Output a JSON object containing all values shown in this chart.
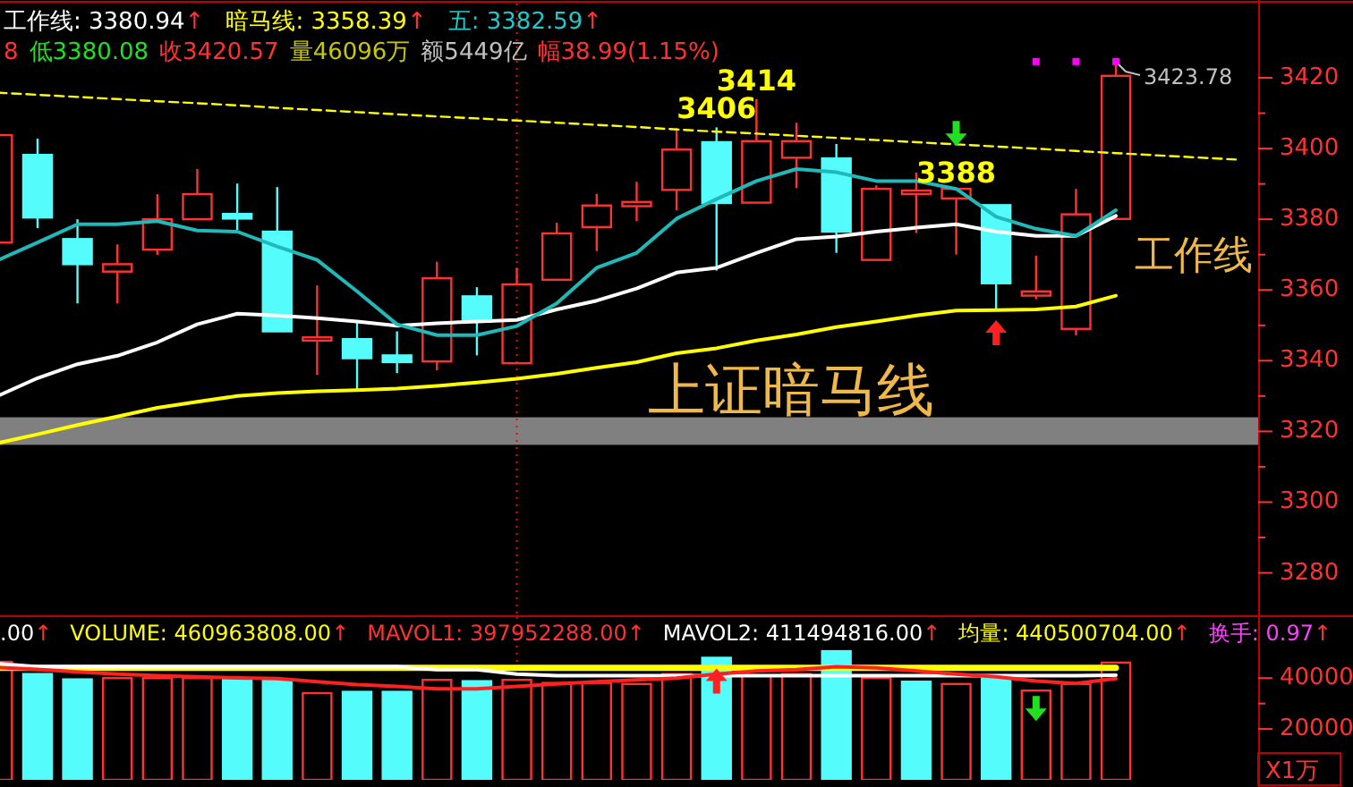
{
  "chart_data": [
    {
      "type": "candlestick",
      "categories": [
        null,
        null,
        null,
        null,
        null,
        null,
        null,
        null,
        null,
        null,
        null,
        null,
        null,
        null,
        null,
        null,
        null,
        null,
        null,
        null,
        null,
        null,
        null,
        null,
        null,
        null,
        null,
        null,
        null,
        null,
        null,
        null
      ],
      "ohlc": [
        [
          3373.4,
          3403.8,
          3373.4,
          3403.8
        ],
        [
          3398.2,
          3402.8,
          3377.5,
          3380.5
        ],
        [
          3374.4,
          3380,
          3356.2,
          3367.3
        ],
        [
          3365.2,
          3372.9,
          3356.2,
          3367.3
        ],
        [
          3371.4,
          3387.1,
          3369.9,
          3380
        ],
        [
          3380,
          3394.2,
          3380,
          3387.1
        ],
        [
          3381.5,
          3390.1,
          3377,
          3380.2
        ],
        [
          3376.5,
          3389.1,
          3348.3,
          3348.3
        ],
        [
          3345.7,
          3361.3,
          3336,
          3346.6
        ],
        [
          3346.1,
          3351.1,
          3331.9,
          3340.7
        ],
        [
          3341.5,
          3348.3,
          3336.5,
          3339.6
        ],
        [
          3339.8,
          3368,
          3337.3,
          3363.3
        ],
        [
          3358.2,
          3360.8,
          3341.5,
          3351
        ],
        [
          3339.3,
          3366.3,
          3339.3,
          3361.6
        ],
        [
          3362.9,
          3379,
          3362.9,
          3376
        ],
        [
          3377.8,
          3387.2,
          3371,
          3383.9
        ],
        [
          3383.7,
          3390.6,
          3379.5,
          3384.9
        ],
        [
          3388.3,
          3405.8,
          3382.5,
          3399.7
        ],
        [
          3401.8,
          3406,
          3365.5,
          3384.6
        ],
        [
          3384.7,
          3414,
          3384.7,
          3402.1
        ],
        [
          3397.4,
          3407.3,
          3388.8,
          3402.1
        ],
        [
          3397.2,
          3401.3,
          3370.5,
          3376.5
        ],
        [
          3368.5,
          3389.6,
          3368.5,
          3388.6
        ],
        [
          3387.1,
          3393.2,
          3376.1,
          3388.1
        ],
        [
          3385.9,
          3388.6,
          3370,
          3388.6
        ],
        [
          3384,
          3384,
          3354.5,
          3361.9
        ],
        [
          3358.4,
          3369.7,
          3357.4,
          3359.6
        ],
        [
          3349,
          3388.6,
          3347.2,
          3381.4
        ],
        [
          3380.1,
          3423.78,
          3380.08,
          3420.57
        ],
        null,
        null,
        null
      ],
      "series": [
        {
          "type": "line",
          "color": "#ffff00",
          "line_style": "dashed",
          "values": [
            3415.8,
            3415.2,
            3414.6,
            3414.0,
            3413.4,
            3412.8,
            3412.2,
            3411.5,
            3410.9,
            3410.3,
            3409.7,
            3409.1,
            3408.5,
            3407.9,
            3407.3,
            3406.7,
            3406.1,
            3405.4,
            3404.8,
            3404.2,
            3403.6,
            3403.0,
            3402.4,
            3401.8,
            3401.2,
            3400.6,
            3400.0,
            3399.3,
            3398.7,
            3398.1,
            3397.5,
            3396.9
          ]
        },
        {
          "type": "line",
          "color": "#ffff00",
          "values": [
            3316.7,
            3319.2,
            3321.8,
            3324.2,
            3326.7,
            3328.4,
            3330,
            3330.9,
            3331.4,
            3331.7,
            3332.1,
            3332.9,
            3333.8,
            3334.9,
            3336.3,
            3338,
            3339.6,
            3342.1,
            3343.5,
            3345.7,
            3347.4,
            3349.5,
            3351.1,
            3352.8,
            3354.2,
            3354.3,
            3354.5,
            3355.3,
            3358.39,
            null,
            null,
            null
          ]
        },
        {
          "type": "line",
          "color": "#ffffff",
          "values": [
            3330,
            3335.1,
            3339,
            3341.4,
            3345.2,
            3350.3,
            3353.3,
            3352.8,
            3352,
            3351.1,
            3349.9,
            3350.6,
            3351.1,
            3351.5,
            3354.5,
            3357,
            3360.4,
            3364.9,
            3366.3,
            3370.5,
            3374.4,
            3375.1,
            3376.5,
            3377.6,
            3378.6,
            3376.5,
            3375.3,
            3375.3,
            3380.94,
            null,
            null,
            null
          ]
        },
        {
          "type": "line",
          "color": "#20b8b8",
          "values": [
            3368.4,
            3373.4,
            3378.6,
            3378.6,
            3379.5,
            3376.8,
            3376.5,
            3372.3,
            3368.5,
            3359.6,
            3350.3,
            3347.2,
            3347.2,
            3349.8,
            3356.2,
            3366.3,
            3370.5,
            3380.2,
            3385.7,
            3390.8,
            3394.2,
            3393.3,
            3390.8,
            3390.8,
            3388.6,
            3380.7,
            3377.3,
            3375.3,
            3382.59,
            null,
            null,
            null
          ]
        },
        {
          "type": "scatter",
          "color": "#ff00ff",
          "marker": "square",
          "values": [
            null,
            null,
            null,
            null,
            null,
            null,
            null,
            null,
            null,
            null,
            null,
            null,
            null,
            null,
            null,
            null,
            null,
            null,
            null,
            null,
            null,
            null,
            null,
            null,
            null,
            null,
            3424.6,
            3424.6,
            3424.6,
            null,
            null,
            null
          ]
        }
      ],
      "ylim": [
        3268,
        3441
      ],
      "yticks": [
        3280,
        3300,
        3320,
        3340,
        3360,
        3380,
        3400,
        3420,
        {
          "value": 3290,
          "label": null
        },
        {
          "value": 3310,
          "label": null
        },
        {
          "value": 3330,
          "label": null
        },
        {
          "value": 3350,
          "label": null
        },
        {
          "value": 3370,
          "label": null
        },
        {
          "value": 3390,
          "label": null
        },
        {
          "value": 3410,
          "label": null
        }
      ],
      "tick_labels": "y",
      "line_style": "solid",
      "bands": [
        {
          "axis": "y",
          "from": 3316.2,
          "to": 3324,
          "color": "#808080"
        }
      ],
      "annotations": [
        "工作线: 3380.94↑",
        "暗马线: 3358.39↑",
        "五: 3382.59↑",
        "8",
        "低3380.08",
        "收3420.57",
        "量46096万",
        "额5449亿",
        "幅38.99(1.15%)",
        "工作线",
        "上证暗马线",
        {
          "text": "3406",
          "y": 3406
        },
        {
          "text": "3414",
          "y": 3414
        },
        {
          "text": "3388",
          "y": 3388
        },
        "3423.78"
      ]
    },
    {
      "type": "bar",
      "categories": [
        null,
        null,
        null,
        null,
        null,
        null,
        null,
        null,
        null,
        null,
        null,
        null,
        null,
        null,
        null,
        null,
        null,
        null,
        null,
        null,
        null,
        null,
        null,
        null,
        null,
        null,
        null,
        null,
        null,
        null,
        null,
        null
      ],
      "series": [
        {
          "type": "bar",
          "values": [
            46400,
            41600,
            39500,
            40000,
            40000,
            40000,
            39800,
            39100,
            34100,
            34600,
            34600,
            39300,
            38800,
            39300,
            38100,
            38100,
            37700,
            41600,
            48000,
            40900,
            41600,
            50600,
            40000,
            38600,
            37700,
            40900,
            35100,
            37700,
            46096,
            null,
            null,
            null
          ],
          "colors": [
            "#ff3232",
            "#54fcfc",
            "#54fcfc",
            "#ff3232",
            "#ff3232",
            "#ff3232",
            "#54fcfc",
            "#54fcfc",
            "#ff3232",
            "#54fcfc",
            "#54fcfc",
            "#ff3232",
            "#54fcfc",
            "#ff3232",
            "#ff3232",
            "#ff3232",
            "#ff3232",
            "#ff3232",
            "#54fcfc",
            "#ff3232",
            "#ff3232",
            "#54fcfc",
            "#ff3232",
            "#54fcfc",
            "#ff3232",
            "#54fcfc",
            "#ff3232",
            "#ff3232",
            "#ff3232",
            null,
            null,
            null
          ]
        },
        {
          "type": "line",
          "color": "#ffff00",
          "values": [
            44050,
            44050,
            44050,
            44050,
            44050,
            44050,
            44050,
            44050,
            44050,
            44050,
            44050,
            44050,
            44050,
            44050,
            44050,
            44050,
            44050,
            44050,
            44050,
            44050,
            44050,
            44050,
            44050,
            44050,
            44050,
            44050,
            44050,
            44050,
            44050,
            null,
            null,
            null
          ]
        },
        {
          "type": "line",
          "color": "#ffffff",
          "values": [
            45700,
            44500,
            44500,
            44500,
            44500,
            44500,
            44500,
            44500,
            44500,
            44500,
            44500,
            43300,
            43300,
            41600,
            40900,
            40900,
            40900,
            40900,
            40900,
            40900,
            40900,
            40900,
            40900,
            40900,
            40900,
            40900,
            40900,
            40900,
            41149,
            null,
            null,
            null
          ]
        },
        {
          "type": "line",
          "color": "#ff2020",
          "values": [
            44200,
            43400,
            42500,
            41600,
            41000,
            40500,
            40100,
            39800,
            38600,
            37400,
            36700,
            35800,
            35800,
            36700,
            37700,
            38600,
            39300,
            40000,
            41600,
            42800,
            43300,
            44500,
            44000,
            42800,
            41600,
            40500,
            38800,
            37900,
            39795,
            null,
            null,
            null
          ]
        }
      ],
      "ylim": [
        0,
        64000
      ],
      "yticks": [
        20000,
        40000,
        {
          "value": 30000,
          "label": null
        }
      ],
      "ylabel": "X1万",
      "tick_labels": "y",
      "annotations": [
        ".00↑",
        "VOLUME: 460963808.00↑",
        "MAVOL1: 397952288.00↑",
        "MAVOL2: 411494816.00↑",
        "均量: 440500704.00↑",
        "换手: 0.97↑"
      ]
    }
  ]
}
